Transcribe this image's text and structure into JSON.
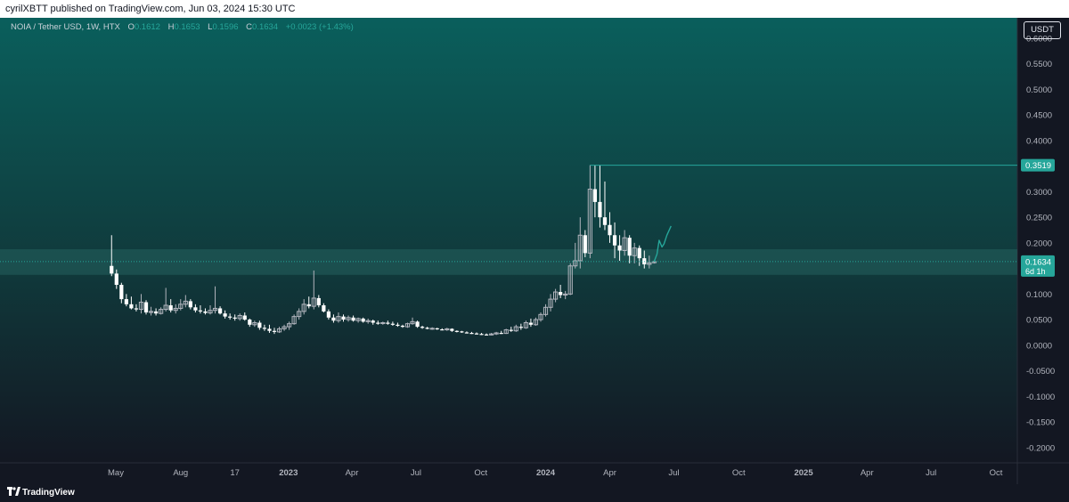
{
  "publisher_line": "cyrilXBTT published on TradingView.com, Jun 03, 2024 15:30 UTC",
  "legend": {
    "symbol": "NOIA / Tether USD, 1W, HTX",
    "o_label": "O",
    "o_value": "0.1612",
    "h_label": "H",
    "h_value": "0.1653",
    "l_label": "L",
    "l_value": "0.1596",
    "c_label": "C",
    "c_value": "0.1634",
    "change": "+0.0023 (+1.43%)"
  },
  "currency": "USDT",
  "footer": {
    "brand": "TradingView"
  },
  "colors": {
    "background": "#131722",
    "gradient_top": "#0a5f5c",
    "candle_up": "#b2b5be",
    "candle_down": "#ffffff",
    "accent": "#26a69a",
    "zone": "#2a6a66"
  },
  "chart_data": {
    "type": "candlestick",
    "interval": "1W",
    "yaxis": {
      "ticks": [
        "0.6000",
        "0.5500",
        "0.5000",
        "0.4500",
        "0.4000",
        "0.3500",
        "0.3000",
        "0.2500",
        "0.2000",
        "0.1500",
        "0.1000",
        "0.0500",
        "0.0000",
        "-0.0500",
        "-0.1000",
        "-0.1500",
        "-0.2000"
      ],
      "tick_values": [
        0.6,
        0.55,
        0.5,
        0.45,
        0.4,
        0.35,
        0.3,
        0.25,
        0.2,
        0.15,
        0.1,
        0.05,
        0.0,
        -0.05,
        -0.1,
        -0.15,
        -0.2
      ],
      "range": [
        -0.23,
        0.64
      ]
    },
    "xaxis": {
      "labels": [
        "May",
        "Aug",
        "17",
        "2023",
        "Apr",
        "Jul",
        "Oct",
        "2024",
        "Apr",
        "Jul",
        "Oct",
        "2025",
        "Apr",
        "Jul",
        "Oct"
      ],
      "label_dates": [
        "2022-05-01",
        "2022-08-01",
        "2022-10-17",
        "2023-01-01",
        "2023-04-01",
        "2023-07-01",
        "2023-10-01",
        "2024-01-01",
        "2024-04-01",
        "2024-07-01",
        "2024-10-01",
        "2025-01-01",
        "2025-04-01",
        "2025-07-01",
        "2025-10-01"
      ],
      "bold": [
        false,
        false,
        false,
        true,
        false,
        false,
        false,
        true,
        false,
        false,
        false,
        true,
        false,
        false,
        false
      ]
    },
    "resistance": {
      "price": 0.3519,
      "label": "0.3519"
    },
    "support_zone": {
      "low": 0.1375,
      "high": 0.1875
    },
    "last_price": {
      "price": 0.1634,
      "label": "0.1634",
      "countdown": "6d 1h"
    },
    "projection": [
      [
        "2024-06-03",
        0.1634
      ],
      [
        "2024-06-07",
        0.178
      ],
      [
        "2024-06-10",
        0.205
      ],
      [
        "2024-06-14",
        0.192
      ],
      [
        "2024-06-17",
        0.198
      ],
      [
        "2024-06-21",
        0.215
      ],
      [
        "2024-06-27",
        0.233
      ]
    ],
    "candles": [
      [
        "2022-04-25",
        0.155,
        0.215,
        0.135,
        0.14
      ],
      [
        "2022-05-02",
        0.14,
        0.148,
        0.11,
        0.118
      ],
      [
        "2022-05-09",
        0.118,
        0.122,
        0.082,
        0.09
      ],
      [
        "2022-05-16",
        0.09,
        0.1,
        0.076,
        0.08
      ],
      [
        "2022-05-23",
        0.08,
        0.095,
        0.07,
        0.072
      ],
      [
        "2022-05-30",
        0.072,
        0.08,
        0.066,
        0.07
      ],
      [
        "2022-06-06",
        0.07,
        0.1,
        0.062,
        0.084
      ],
      [
        "2022-06-13",
        0.084,
        0.088,
        0.06,
        0.064
      ],
      [
        "2022-06-20",
        0.064,
        0.075,
        0.058,
        0.066
      ],
      [
        "2022-06-27",
        0.066,
        0.072,
        0.058,
        0.062
      ],
      [
        "2022-07-04",
        0.062,
        0.074,
        0.06,
        0.07
      ],
      [
        "2022-07-11",
        0.07,
        0.112,
        0.066,
        0.078
      ],
      [
        "2022-07-18",
        0.078,
        0.09,
        0.064,
        0.068
      ],
      [
        "2022-07-25",
        0.068,
        0.08,
        0.062,
        0.072
      ],
      [
        "2022-08-01",
        0.072,
        0.09,
        0.068,
        0.08
      ],
      [
        "2022-08-08",
        0.08,
        0.098,
        0.074,
        0.086
      ],
      [
        "2022-08-15",
        0.086,
        0.09,
        0.07,
        0.074
      ],
      [
        "2022-08-22",
        0.074,
        0.08,
        0.064,
        0.068
      ],
      [
        "2022-08-29",
        0.068,
        0.078,
        0.062,
        0.066
      ],
      [
        "2022-09-05",
        0.066,
        0.072,
        0.06,
        0.063
      ],
      [
        "2022-09-12",
        0.063,
        0.078,
        0.06,
        0.068
      ],
      [
        "2022-09-19",
        0.068,
        0.115,
        0.062,
        0.072
      ],
      [
        "2022-09-26",
        0.072,
        0.076,
        0.06,
        0.062
      ],
      [
        "2022-10-03",
        0.062,
        0.068,
        0.052,
        0.056
      ],
      [
        "2022-10-10",
        0.056,
        0.062,
        0.05,
        0.054
      ],
      [
        "2022-10-17",
        0.054,
        0.06,
        0.048,
        0.052
      ],
      [
        "2022-10-24",
        0.052,
        0.062,
        0.048,
        0.058
      ],
      [
        "2022-10-31",
        0.058,
        0.064,
        0.048,
        0.05
      ],
      [
        "2022-11-07",
        0.05,
        0.052,
        0.036,
        0.04
      ],
      [
        "2022-11-14",
        0.04,
        0.048,
        0.036,
        0.044
      ],
      [
        "2022-11-21",
        0.044,
        0.048,
        0.03,
        0.034
      ],
      [
        "2022-11-28",
        0.034,
        0.04,
        0.028,
        0.032
      ],
      [
        "2022-12-05",
        0.032,
        0.04,
        0.024,
        0.028
      ],
      [
        "2022-12-12",
        0.028,
        0.034,
        0.022,
        0.026
      ],
      [
        "2022-12-19",
        0.026,
        0.036,
        0.024,
        0.032
      ],
      [
        "2022-12-26",
        0.032,
        0.04,
        0.028,
        0.036
      ],
      [
        "2023-01-02",
        0.036,
        0.046,
        0.03,
        0.042
      ],
      [
        "2023-01-09",
        0.042,
        0.06,
        0.04,
        0.056
      ],
      [
        "2023-01-16",
        0.056,
        0.072,
        0.05,
        0.066
      ],
      [
        "2023-01-23",
        0.066,
        0.09,
        0.06,
        0.08
      ],
      [
        "2023-01-30",
        0.08,
        0.095,
        0.072,
        0.076
      ],
      [
        "2023-02-06",
        0.076,
        0.146,
        0.07,
        0.092
      ],
      [
        "2023-02-13",
        0.092,
        0.098,
        0.074,
        0.078
      ],
      [
        "2023-02-20",
        0.078,
        0.082,
        0.064,
        0.066
      ],
      [
        "2023-02-27",
        0.066,
        0.07,
        0.05,
        0.054
      ],
      [
        "2023-03-06",
        0.054,
        0.06,
        0.044,
        0.048
      ],
      [
        "2023-03-13",
        0.048,
        0.064,
        0.044,
        0.056
      ],
      [
        "2023-03-20",
        0.056,
        0.06,
        0.046,
        0.05
      ],
      [
        "2023-03-27",
        0.05,
        0.058,
        0.046,
        0.054
      ],
      [
        "2023-04-03",
        0.054,
        0.058,
        0.046,
        0.048
      ],
      [
        "2023-04-10",
        0.048,
        0.054,
        0.044,
        0.052
      ],
      [
        "2023-04-17",
        0.052,
        0.054,
        0.044,
        0.046
      ],
      [
        "2023-04-24",
        0.046,
        0.052,
        0.042,
        0.048
      ],
      [
        "2023-05-01",
        0.048,
        0.05,
        0.04,
        0.044
      ],
      [
        "2023-05-08",
        0.044,
        0.048,
        0.04,
        0.043
      ],
      [
        "2023-05-15",
        0.043,
        0.046,
        0.04,
        0.044
      ],
      [
        "2023-05-22",
        0.044,
        0.048,
        0.04,
        0.042
      ],
      [
        "2023-05-29",
        0.042,
        0.046,
        0.038,
        0.04
      ],
      [
        "2023-06-05",
        0.04,
        0.044,
        0.036,
        0.038
      ],
      [
        "2023-06-12",
        0.038,
        0.04,
        0.034,
        0.036
      ],
      [
        "2023-06-19",
        0.036,
        0.044,
        0.034,
        0.042
      ],
      [
        "2023-06-26",
        0.042,
        0.054,
        0.04,
        0.046
      ],
      [
        "2023-07-03",
        0.046,
        0.048,
        0.034,
        0.036
      ],
      [
        "2023-07-10",
        0.036,
        0.038,
        0.032,
        0.034
      ],
      [
        "2023-07-17",
        0.034,
        0.036,
        0.031,
        0.032
      ],
      [
        "2023-07-24",
        0.032,
        0.035,
        0.03,
        0.033
      ],
      [
        "2023-07-31",
        0.033,
        0.034,
        0.03,
        0.031
      ],
      [
        "2023-08-07",
        0.031,
        0.033,
        0.029,
        0.03
      ],
      [
        "2023-08-14",
        0.03,
        0.034,
        0.028,
        0.032
      ],
      [
        "2023-08-21",
        0.032,
        0.033,
        0.026,
        0.028
      ],
      [
        "2023-08-28",
        0.028,
        0.029,
        0.025,
        0.027
      ],
      [
        "2023-09-04",
        0.027,
        0.028,
        0.024,
        0.025
      ],
      [
        "2023-09-11",
        0.025,
        0.027,
        0.023,
        0.024
      ],
      [
        "2023-09-18",
        0.024,
        0.026,
        0.022,
        0.023
      ],
      [
        "2023-09-25",
        0.023,
        0.025,
        0.021,
        0.022
      ],
      [
        "2023-10-02",
        0.022,
        0.024,
        0.02,
        0.021
      ],
      [
        "2023-10-09",
        0.021,
        0.023,
        0.019,
        0.02
      ],
      [
        "2023-10-16",
        0.02,
        0.024,
        0.019,
        0.022
      ],
      [
        "2023-10-23",
        0.022,
        0.026,
        0.02,
        0.024
      ],
      [
        "2023-10-30",
        0.024,
        0.028,
        0.022,
        0.023
      ],
      [
        "2023-11-06",
        0.023,
        0.032,
        0.022,
        0.03
      ],
      [
        "2023-11-13",
        0.03,
        0.036,
        0.026,
        0.028
      ],
      [
        "2023-11-20",
        0.028,
        0.04,
        0.026,
        0.036
      ],
      [
        "2023-11-27",
        0.036,
        0.042,
        0.03,
        0.034
      ],
      [
        "2023-12-04",
        0.034,
        0.048,
        0.032,
        0.044
      ],
      [
        "2023-12-11",
        0.044,
        0.052,
        0.036,
        0.04
      ],
      [
        "2023-12-18",
        0.04,
        0.054,
        0.038,
        0.05
      ],
      [
        "2023-12-25",
        0.05,
        0.064,
        0.046,
        0.06
      ],
      [
        "2024-01-01",
        0.06,
        0.08,
        0.056,
        0.074
      ],
      [
        "2024-01-08",
        0.074,
        0.1,
        0.066,
        0.09
      ],
      [
        "2024-01-15",
        0.09,
        0.11,
        0.084,
        0.104
      ],
      [
        "2024-01-22",
        0.104,
        0.118,
        0.092,
        0.098
      ],
      [
        "2024-01-29",
        0.098,
        0.106,
        0.09,
        0.1
      ],
      [
        "2024-02-05",
        0.1,
        0.16,
        0.098,
        0.155
      ],
      [
        "2024-02-12",
        0.155,
        0.2,
        0.15,
        0.165
      ],
      [
        "2024-02-19",
        0.165,
        0.25,
        0.15,
        0.215
      ],
      [
        "2024-02-26",
        0.215,
        0.225,
        0.172,
        0.18
      ],
      [
        "2024-03-04",
        0.18,
        0.352,
        0.17,
        0.305
      ],
      [
        "2024-03-11",
        0.305,
        0.352,
        0.25,
        0.28
      ],
      [
        "2024-03-18",
        0.28,
        0.352,
        0.23,
        0.25
      ],
      [
        "2024-03-25",
        0.25,
        0.32,
        0.225,
        0.235
      ],
      [
        "2024-04-01",
        0.235,
        0.26,
        0.2,
        0.215
      ],
      [
        "2024-04-08",
        0.215,
        0.24,
        0.17,
        0.195
      ],
      [
        "2024-04-15",
        0.195,
        0.215,
        0.165,
        0.185
      ],
      [
        "2024-04-22",
        0.185,
        0.225,
        0.175,
        0.21
      ],
      [
        "2024-04-29",
        0.21,
        0.215,
        0.16,
        0.175
      ],
      [
        "2024-05-06",
        0.175,
        0.2,
        0.16,
        0.19
      ],
      [
        "2024-05-13",
        0.19,
        0.195,
        0.155,
        0.17
      ],
      [
        "2024-05-20",
        0.17,
        0.185,
        0.15,
        0.158
      ],
      [
        "2024-05-27",
        0.158,
        0.175,
        0.15,
        0.161
      ],
      [
        "2024-06-03",
        0.1612,
        0.1653,
        0.1596,
        0.1634
      ]
    ]
  }
}
